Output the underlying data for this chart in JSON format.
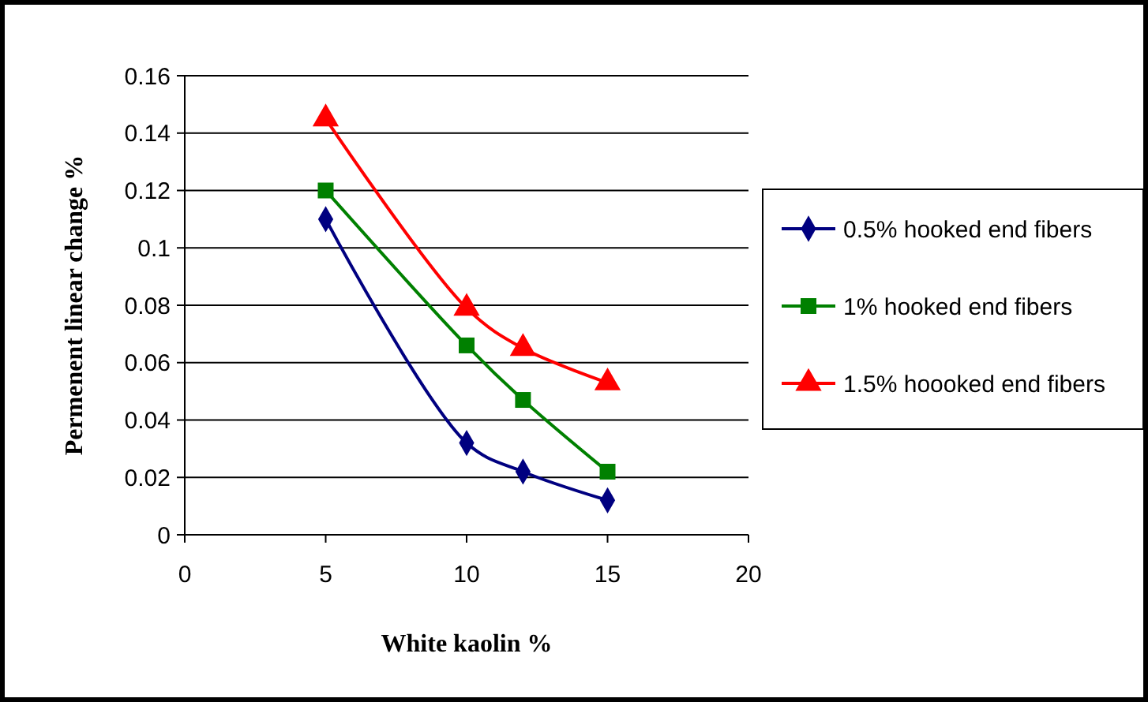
{
  "chart_data": {
    "type": "line",
    "xlabel": "White kaolin %",
    "ylabel": "Permenent linear change %",
    "xlim": [
      0,
      20
    ],
    "xticks": [
      0,
      5,
      10,
      15,
      20
    ],
    "ylim": [
      0,
      0.16
    ],
    "yticks": [
      0,
      0.02,
      0.04,
      0.06,
      0.08,
      0.1,
      0.12,
      0.14,
      0.16
    ],
    "grid": "y",
    "legend": "right",
    "line_style": "solid",
    "series": [
      {
        "name": "0.5% hooked end fibers",
        "color": "#000080",
        "marker": "diamond",
        "x": [
          5,
          10,
          12,
          15
        ],
        "values": [
          0.11,
          0.032,
          0.022,
          0.012
        ]
      },
      {
        "name": "1% hooked end fibers",
        "color": "#008000",
        "marker": "square",
        "x": [
          5,
          10,
          12,
          15
        ],
        "values": [
          0.12,
          0.066,
          0.047,
          0.022
        ]
      },
      {
        "name": "1.5% hoooked end fibers",
        "color": "#ff0000",
        "marker": "triangle",
        "x": [
          5,
          10,
          12,
          15
        ],
        "values": [
          0.145,
          0.079,
          0.065,
          0.053
        ]
      }
    ]
  }
}
